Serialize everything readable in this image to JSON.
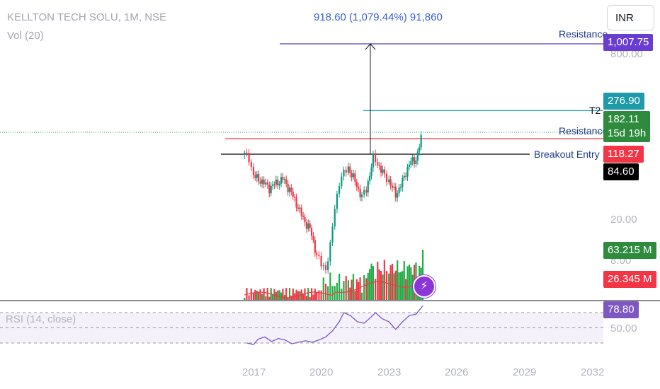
{
  "header": {
    "title": "KELLTON TECH SOLU, 1M, NSE",
    "indicator": "Vol (20)",
    "rsi": "RSI (14, close)",
    "measure": "918.60 (1,079.44%) 91,860",
    "currency": "INR"
  },
  "price_axis": [
    "800.00",
    "20.00",
    "8.00",
    "50.00"
  ],
  "tags": {
    "resistance_top": "1,007.75",
    "t1": "276.90",
    "last": "182.11",
    "countdown": "15d 19h",
    "entry": "118.27",
    "breakout": "84.60",
    "volume": "63.215 M",
    "volume_ma": "26.345 M",
    "rsi": "78.80"
  },
  "line_labels": {
    "resistance_top": "Resistance",
    "t2": "T2",
    "resistance_mid": "Resistance",
    "breakout": "Breakout Entry 🚨"
  },
  "years": [
    "2017",
    "2020",
    "2023",
    "2026",
    "2029",
    "2032"
  ],
  "colors": {
    "up": "#26a69a",
    "up_green": "#089981",
    "down": "#f23645",
    "volume_up": "#22ab46",
    "rsi_line": "#7e57c2",
    "rsi_band": "#ede7f6",
    "ma": "#f23645",
    "resistance": "#5b3cc4",
    "target": "#26a1b4",
    "breakout": "#000000"
  },
  "chart_data": {
    "type": "candlestick",
    "symbol": "KELLTON TECH SOLU",
    "interval": "1M",
    "exchange": "NSE",
    "x_range_years": [
      2015.5,
      2032.5
    ],
    "price_scale": "log",
    "levels": {
      "resistance_top": 1007.75,
      "t1": 276.9,
      "last": 182.11,
      "resistance_mid": 118.27,
      "breakout_entry": 84.6
    },
    "rsi_value": 78.8,
    "rsi_bands": [
      70,
      50,
      30
    ],
    "volume_last_m": 63.215,
    "volume_ma_m": 26.345,
    "price_path": [
      [
        2016.6,
        118
      ],
      [
        2016.8,
        112
      ],
      [
        2017.0,
        78
      ],
      [
        2017.3,
        72
      ],
      [
        2017.7,
        62
      ],
      [
        2018.0,
        68
      ],
      [
        2018.3,
        74
      ],
      [
        2018.6,
        60
      ],
      [
        2018.9,
        46
      ],
      [
        2019.2,
        34
      ],
      [
        2019.5,
        28
      ],
      [
        2019.8,
        17
      ],
      [
        2020.0,
        14
      ],
      [
        2020.2,
        13
      ],
      [
        2020.4,
        20
      ],
      [
        2020.6,
        42
      ],
      [
        2020.8,
        70
      ],
      [
        2021.0,
        82
      ],
      [
        2021.2,
        92
      ],
      [
        2021.5,
        70
      ],
      [
        2021.8,
        52
      ],
      [
        2022.0,
        60
      ],
      [
        2022.3,
        110
      ],
      [
        2022.5,
        100
      ],
      [
        2022.8,
        78
      ],
      [
        2023.0,
        72
      ],
      [
        2023.3,
        54
      ],
      [
        2023.6,
        70
      ],
      [
        2023.9,
        100
      ],
      [
        2024.2,
        108
      ],
      [
        2024.5,
        182
      ]
    ],
    "rsi_path": [
      [
        2016.7,
        30
      ],
      [
        2017.0,
        28
      ],
      [
        2017.2,
        35
      ],
      [
        2017.5,
        38
      ],
      [
        2017.8,
        32
      ],
      [
        2018.1,
        36
      ],
      [
        2018.4,
        34
      ],
      [
        2018.7,
        29
      ],
      [
        2019.0,
        31
      ],
      [
        2019.3,
        33
      ],
      [
        2019.6,
        31
      ],
      [
        2019.9,
        34
      ],
      [
        2020.2,
        38
      ],
      [
        2020.5,
        46
      ],
      [
        2020.8,
        58
      ],
      [
        2021.0,
        70
      ],
      [
        2021.3,
        66
      ],
      [
        2021.6,
        58
      ],
      [
        2021.9,
        56
      ],
      [
        2022.2,
        64
      ],
      [
        2022.4,
        70
      ],
      [
        2022.7,
        62
      ],
      [
        2023.0,
        58
      ],
      [
        2023.3,
        48
      ],
      [
        2023.6,
        58
      ],
      [
        2023.9,
        66
      ],
      [
        2024.2,
        68
      ],
      [
        2024.5,
        79
      ]
    ]
  }
}
